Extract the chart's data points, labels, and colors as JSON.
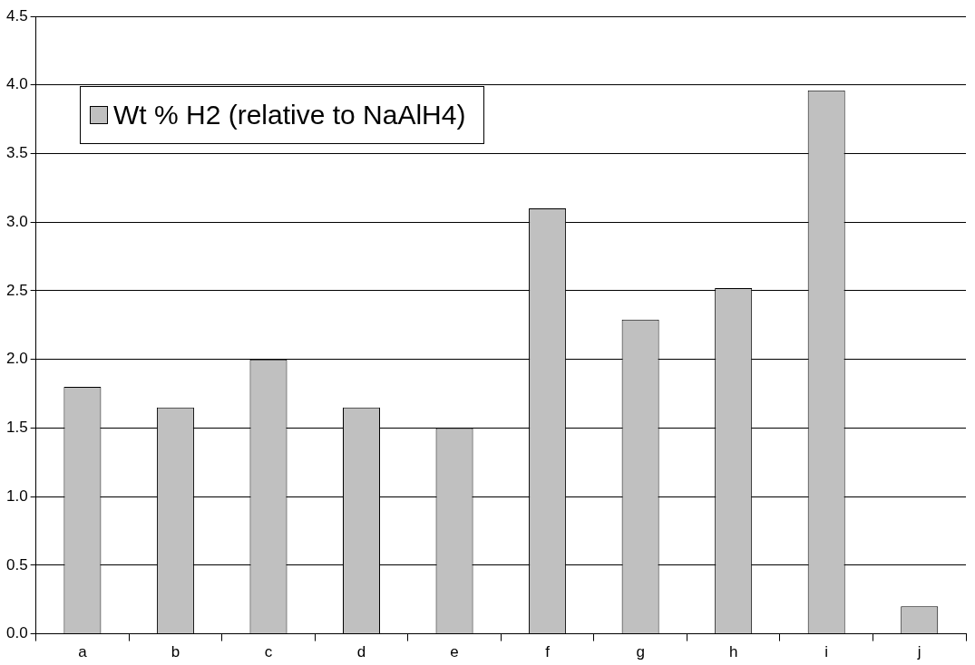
{
  "chart_data": {
    "type": "bar",
    "categories": [
      "a",
      "b",
      "c",
      "d",
      "e",
      "f",
      "g",
      "h",
      "i",
      "j"
    ],
    "series": [
      {
        "name": "Wt % H2 (relative to NaAlH4)",
        "color": "#c0c0c0",
        "values": [
          1.8,
          1.65,
          2.0,
          1.65,
          1.5,
          3.1,
          2.29,
          2.52,
          3.96,
          0.2
        ]
      }
    ],
    "ylim": [
      0,
      4.5
    ],
    "yticks": [
      {
        "value": 0,
        "label": "0.0"
      },
      {
        "value": 0.5,
        "label": "0.5"
      },
      {
        "value": 1,
        "label": "1.0"
      },
      {
        "value": 1.5,
        "label": "1.5"
      },
      {
        "value": 2,
        "label": "2.0"
      },
      {
        "value": 2.5,
        "label": "2.5"
      },
      {
        "value": 3,
        "label": "3.0"
      },
      {
        "value": 3.5,
        "label": "3.5"
      },
      {
        "value": 4,
        "label": "4.0"
      },
      {
        "value": 4.5,
        "label": "4.5"
      }
    ],
    "grid": "y",
    "legend": "top left"
  }
}
